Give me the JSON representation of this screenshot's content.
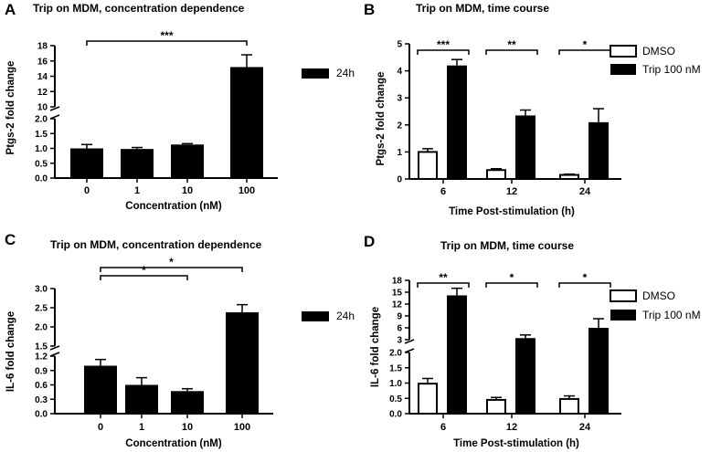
{
  "chart_data": [
    {
      "panel": "A",
      "type": "bar",
      "title": "Trip on MDM, concentration dependence",
      "xlabel": "Concentration (nM)",
      "ylabel": "Ptgs-2 fold change",
      "categories": [
        "0",
        "1",
        "10",
        "100"
      ],
      "series": [
        {
          "name": "24h",
          "values": [
            1.0,
            0.98,
            1.13,
            15.2
          ],
          "errors": [
            0.13,
            0.05,
            0.03,
            1.6
          ]
        }
      ],
      "axis_segments": [
        {
          "range": [
            0,
            2.0
          ],
          "ticks": [
            "0.0",
            "0.5",
            "1.0",
            "1.5",
            "2.0"
          ]
        },
        {
          "range": [
            10,
            18
          ],
          "ticks": [
            "10",
            "12",
            "14",
            "16",
            "18"
          ]
        }
      ],
      "y_break": [
        2.0,
        10
      ],
      "significance": [
        {
          "from": "0",
          "to": "100",
          "label": "***"
        }
      ]
    },
    {
      "panel": "B",
      "type": "bar",
      "title": "Trip on MDM, time course",
      "xlabel": "Time Post-stimulation (h)",
      "ylabel": "Ptgs-2 fold change",
      "categories": [
        "6",
        "12",
        "24"
      ],
      "series": [
        {
          "name": "DMSO",
          "values": [
            1.0,
            0.33,
            0.15
          ],
          "errors": [
            0.12,
            0.05,
            0.03
          ]
        },
        {
          "name": "Trip 100 nM",
          "values": [
            4.2,
            2.35,
            2.1
          ],
          "errors": [
            0.22,
            0.2,
            0.5
          ]
        }
      ],
      "ylim": [
        0,
        5
      ],
      "yticks": [
        "0",
        "1",
        "2",
        "3",
        "4",
        "5"
      ],
      "significance": [
        {
          "group": "6",
          "label": "***"
        },
        {
          "group": "12",
          "label": "**"
        },
        {
          "group": "24",
          "label": "*"
        }
      ]
    },
    {
      "panel": "C",
      "type": "bar",
      "title": "Trip on MDM, concentration dependence",
      "xlabel": "Concentration (nM)",
      "ylabel": "IL-6 fold change",
      "categories": [
        "0",
        "1",
        "10",
        "100"
      ],
      "series": [
        {
          "name": "24h",
          "values": [
            1.0,
            0.6,
            0.47,
            2.38
          ],
          "errors": [
            0.13,
            0.15,
            0.05,
            0.2
          ]
        }
      ],
      "axis_segments": [
        {
          "range": [
            0,
            1.2
          ],
          "ticks": [
            "0.0",
            "0.3",
            "0.6",
            "0.9",
            "1.2"
          ]
        },
        {
          "range": [
            1.5,
            3.0
          ],
          "ticks": [
            "1.5",
            "2.0",
            "2.5",
            "3.0"
          ]
        }
      ],
      "y_break": [
        1.2,
        1.5
      ],
      "significance": [
        {
          "from": "0",
          "to": "10",
          "label": "*"
        },
        {
          "from": "0",
          "to": "100",
          "label": "*"
        }
      ]
    },
    {
      "panel": "D",
      "type": "bar",
      "title": "Trip on MDM, time course",
      "xlabel": "Time Post-stimulation (h)",
      "ylabel": "IL-6 fold change",
      "categories": [
        "6",
        "12",
        "24"
      ],
      "series": [
        {
          "name": "DMSO",
          "values": [
            0.98,
            0.45,
            0.48
          ],
          "errors": [
            0.17,
            0.08,
            0.1
          ]
        },
        {
          "name": "Trip 100 nM",
          "values": [
            14.2,
            3.4,
            6.0
          ],
          "errors": [
            1.8,
            0.8,
            2.3
          ]
        }
      ],
      "axis_segments": [
        {
          "range": [
            0,
            2.0
          ],
          "ticks": [
            "0.0",
            "0.5",
            "1.0",
            "1.5",
            "2.0"
          ]
        },
        {
          "range": [
            3,
            18
          ],
          "ticks": [
            "3",
            "6",
            "9",
            "12",
            "15",
            "18"
          ]
        }
      ],
      "y_break": [
        2.0,
        3
      ],
      "significance": [
        {
          "group": "6",
          "label": "**"
        },
        {
          "group": "12",
          "label": "*"
        },
        {
          "group": "24",
          "label": "*"
        }
      ]
    }
  ]
}
